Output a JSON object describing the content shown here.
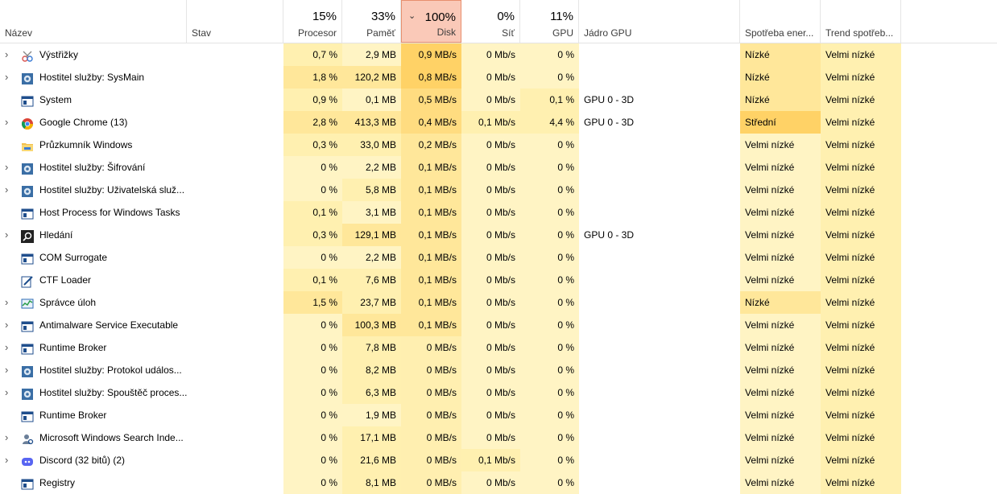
{
  "header": {
    "name": {
      "label": "Název"
    },
    "status": {
      "label": "Stav"
    },
    "cpu": {
      "pct": "15%",
      "label": "Procesor"
    },
    "memory": {
      "pct": "33%",
      "label": "Paměť"
    },
    "disk": {
      "pct": "100%",
      "label": "Disk"
    },
    "network": {
      "pct": "0%",
      "label": "Síť"
    },
    "gpu": {
      "pct": "11%",
      "label": "GPU"
    },
    "gpu_engine": {
      "label": "Jádro GPU"
    },
    "power": {
      "label": "Spotřeba ener..."
    },
    "power_trend": {
      "label": "Trend spotřeb..."
    }
  },
  "colors": {
    "sort_header": "#fac9b8",
    "heat_light": "#fff4c4",
    "heat_mid": "#ffe79a",
    "heat_strong": "#ffd266"
  },
  "rows": [
    {
      "name": "Výstřižky",
      "icon": "snipping-tool-icon",
      "expandable": true,
      "cpu": "0,7 %",
      "mem": "2,9 MB",
      "disk": "0,9 MB/s",
      "net": "0 Mb/s",
      "gpu": "0 %",
      "engine": "",
      "power": "Nízké",
      "trend": "Velmi nízké"
    },
    {
      "name": "Hostitel služby: SysMain",
      "icon": "gear-icon",
      "expandable": true,
      "cpu": "1,8 %",
      "mem": "120,2 MB",
      "disk": "0,8 MB/s",
      "net": "0 Mb/s",
      "gpu": "0 %",
      "engine": "",
      "power": "Nízké",
      "trend": "Velmi nízké"
    },
    {
      "name": "System",
      "icon": "window-icon",
      "expandable": false,
      "cpu": "0,9 %",
      "mem": "0,1 MB",
      "disk": "0,5 MB/s",
      "net": "0 Mb/s",
      "gpu": "0,1 %",
      "engine": "GPU 0 - 3D",
      "power": "Nízké",
      "trend": "Velmi nízké"
    },
    {
      "name": "Google Chrome (13)",
      "icon": "chrome-icon",
      "expandable": true,
      "cpu": "2,8 %",
      "mem": "413,3 MB",
      "disk": "0,4 MB/s",
      "net": "0,1 Mb/s",
      "gpu": "4,4 %",
      "engine": "GPU 0 - 3D",
      "power": "Střední",
      "trend": "Velmi nízké"
    },
    {
      "name": "Průzkumník Windows",
      "icon": "folder-icon",
      "expandable": false,
      "cpu": "0,3 %",
      "mem": "33,0 MB",
      "disk": "0,2 MB/s",
      "net": "0 Mb/s",
      "gpu": "0 %",
      "engine": "",
      "power": "Velmi nízké",
      "trend": "Velmi nízké"
    },
    {
      "name": "Hostitel služby: Šifrování",
      "icon": "gear-icon",
      "expandable": true,
      "cpu": "0 %",
      "mem": "2,2 MB",
      "disk": "0,1 MB/s",
      "net": "0 Mb/s",
      "gpu": "0 %",
      "engine": "",
      "power": "Velmi nízké",
      "trend": "Velmi nízké"
    },
    {
      "name": "Hostitel služby: Uživatelská služ...",
      "icon": "gear-icon",
      "expandable": true,
      "cpu": "0 %",
      "mem": "5,8 MB",
      "disk": "0,1 MB/s",
      "net": "0 Mb/s",
      "gpu": "0 %",
      "engine": "",
      "power": "Velmi nízké",
      "trend": "Velmi nízké"
    },
    {
      "name": "Host Process for Windows Tasks",
      "icon": "window-icon",
      "expandable": false,
      "cpu": "0,1 %",
      "mem": "3,1 MB",
      "disk": "0,1 MB/s",
      "net": "0 Mb/s",
      "gpu": "0 %",
      "engine": "",
      "power": "Velmi nízké",
      "trend": "Velmi nízké"
    },
    {
      "name": "Hledání",
      "icon": "search-icon",
      "expandable": true,
      "cpu": "0,3 %",
      "mem": "129,1 MB",
      "disk": "0,1 MB/s",
      "net": "0 Mb/s",
      "gpu": "0 %",
      "engine": "GPU 0 - 3D",
      "power": "Velmi nízké",
      "trend": "Velmi nízké"
    },
    {
      "name": "COM Surrogate",
      "icon": "window-icon",
      "expandable": false,
      "cpu": "0 %",
      "mem": "2,2 MB",
      "disk": "0,1 MB/s",
      "net": "0 Mb/s",
      "gpu": "0 %",
      "engine": "",
      "power": "Velmi nízké",
      "trend": "Velmi nízké"
    },
    {
      "name": "CTF Loader",
      "icon": "pen-icon",
      "expandable": false,
      "cpu": "0,1 %",
      "mem": "7,6 MB",
      "disk": "0,1 MB/s",
      "net": "0 Mb/s",
      "gpu": "0 %",
      "engine": "",
      "power": "Velmi nízké",
      "trend": "Velmi nízké"
    },
    {
      "name": "Správce úloh",
      "icon": "task-manager-icon",
      "expandable": true,
      "cpu": "1,5 %",
      "mem": "23,7 MB",
      "disk": "0,1 MB/s",
      "net": "0 Mb/s",
      "gpu": "0 %",
      "engine": "",
      "power": "Nízké",
      "trend": "Velmi nízké"
    },
    {
      "name": "Antimalware Service Executable",
      "icon": "window-icon",
      "expandable": true,
      "cpu": "0 %",
      "mem": "100,3 MB",
      "disk": "0,1 MB/s",
      "net": "0 Mb/s",
      "gpu": "0 %",
      "engine": "",
      "power": "Velmi nízké",
      "trend": "Velmi nízké"
    },
    {
      "name": "Runtime Broker",
      "icon": "window-icon",
      "expandable": true,
      "cpu": "0 %",
      "mem": "7,8 MB",
      "disk": "0 MB/s",
      "net": "0 Mb/s",
      "gpu": "0 %",
      "engine": "",
      "power": "Velmi nízké",
      "trend": "Velmi nízké"
    },
    {
      "name": "Hostitel služby: Protokol událos...",
      "icon": "gear-icon",
      "expandable": true,
      "cpu": "0 %",
      "mem": "8,2 MB",
      "disk": "0 MB/s",
      "net": "0 Mb/s",
      "gpu": "0 %",
      "engine": "",
      "power": "Velmi nízké",
      "trend": "Velmi nízké"
    },
    {
      "name": "Hostitel služby: Spouštěč proces...",
      "icon": "gear-icon",
      "expandable": true,
      "cpu": "0 %",
      "mem": "6,3 MB",
      "disk": "0 MB/s",
      "net": "0 Mb/s",
      "gpu": "0 %",
      "engine": "",
      "power": "Velmi nízké",
      "trend": "Velmi nízké"
    },
    {
      "name": "Runtime Broker",
      "icon": "window-icon",
      "expandable": false,
      "cpu": "0 %",
      "mem": "1,9 MB",
      "disk": "0 MB/s",
      "net": "0 Mb/s",
      "gpu": "0 %",
      "engine": "",
      "power": "Velmi nízké",
      "trend": "Velmi nízké"
    },
    {
      "name": "Microsoft Windows Search Inde...",
      "icon": "search-indexer-icon",
      "expandable": true,
      "cpu": "0 %",
      "mem": "17,1 MB",
      "disk": "0 MB/s",
      "net": "0 Mb/s",
      "gpu": "0 %",
      "engine": "",
      "power": "Velmi nízké",
      "trend": "Velmi nízké"
    },
    {
      "name": "Discord (32 bitů) (2)",
      "icon": "discord-icon",
      "expandable": true,
      "cpu": "0 %",
      "mem": "21,6 MB",
      "disk": "0 MB/s",
      "net": "0,1 Mb/s",
      "gpu": "0 %",
      "engine": "",
      "power": "Velmi nízké",
      "trend": "Velmi nízké"
    },
    {
      "name": "Registry",
      "icon": "window-icon",
      "expandable": false,
      "cpu": "0 %",
      "mem": "8,1 MB",
      "disk": "0 MB/s",
      "net": "0 Mb/s",
      "gpu": "0 %",
      "engine": "",
      "power": "Velmi nízké",
      "trend": "Velmi nízké"
    }
  ]
}
